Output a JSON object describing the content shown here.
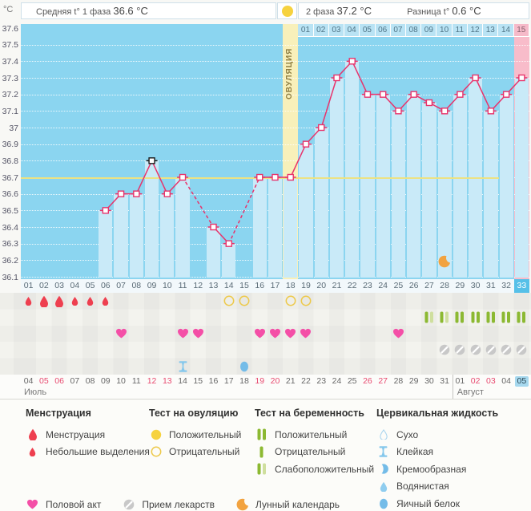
{
  "header": {
    "unit": "°C",
    "phase1_label": "Средняя t° 1 фаза",
    "phase1_value": "36.6 °C",
    "ovulation_label": "ОВУЛЯЦИЯ",
    "phase2_label": "2 фаза",
    "phase2_value": "37.2 °C",
    "diff_label": "Разница t°",
    "diff_value": "0.6 °C"
  },
  "chart_data": {
    "type": "line",
    "ylabel": "°C",
    "ylim": [
      36.1,
      37.6
    ],
    "ytick_labels": [
      "37.6",
      "37.5",
      "37.4",
      "37.3",
      "37.2",
      "37.1",
      "37",
      "36.9",
      "36.8",
      "36.7",
      "36.6",
      "36.5",
      "36.4",
      "36.3",
      "36.2",
      "36.1"
    ],
    "total_days": 33,
    "coverline_temp": 36.7,
    "coverline_span_days": [
      1,
      31
    ],
    "ovulation_day": 18,
    "current_day": 33,
    "moon_day": 28,
    "phase2_dpo_labels": [
      "01",
      "02",
      "03",
      "04",
      "05",
      "06",
      "07",
      "08",
      "09",
      "10",
      "11",
      "12",
      "13",
      "14",
      "15"
    ],
    "points": [
      {
        "day": 6,
        "temp": 36.5
      },
      {
        "day": 7,
        "temp": 36.6
      },
      {
        "day": 8,
        "temp": 36.6
      },
      {
        "day": 9,
        "temp": 36.8,
        "peak": true
      },
      {
        "day": 10,
        "temp": 36.6
      },
      {
        "day": 11,
        "temp": 36.7
      },
      {
        "day": 13,
        "temp": 36.4
      },
      {
        "day": 14,
        "temp": 36.3
      },
      {
        "day": 16,
        "temp": 36.7
      },
      {
        "day": 17,
        "temp": 36.7
      },
      {
        "day": 18,
        "temp": 36.7
      },
      {
        "day": 19,
        "temp": 36.9
      },
      {
        "day": 20,
        "temp": 37.0
      },
      {
        "day": 21,
        "temp": 37.3
      },
      {
        "day": 22,
        "temp": 37.4
      },
      {
        "day": 23,
        "temp": 37.2
      },
      {
        "day": 24,
        "temp": 37.2
      },
      {
        "day": 25,
        "temp": 37.1
      },
      {
        "day": 26,
        "temp": 37.2
      },
      {
        "day": 27,
        "temp": 37.15
      },
      {
        "day": 28,
        "temp": 37.1
      },
      {
        "day": 29,
        "temp": 37.2
      },
      {
        "day": 30,
        "temp": 37.3
      },
      {
        "day": 31,
        "temp": 37.1
      },
      {
        "day": 32,
        "temp": 37.2
      },
      {
        "day": 33,
        "temp": 37.3
      }
    ]
  },
  "day_numbers": [
    "01",
    "02",
    "03",
    "04",
    "05",
    "06",
    "07",
    "08",
    "09",
    "10",
    "11",
    "12",
    "13",
    "14",
    "15",
    "16",
    "17",
    "18",
    "19",
    "20",
    "21",
    "22",
    "23",
    "24",
    "25",
    "26",
    "27",
    "28",
    "29",
    "30",
    "31",
    "32",
    "33"
  ],
  "symbols": {
    "menstruation": [
      {
        "day": 1,
        "size": "small"
      },
      {
        "day": 2,
        "size": "big"
      },
      {
        "day": 3,
        "size": "big"
      },
      {
        "day": 4,
        "size": "small"
      },
      {
        "day": 5,
        "size": "small"
      },
      {
        "day": 6,
        "size": "small"
      }
    ],
    "ovulation_tests": [
      {
        "day": 14,
        "result": "negative"
      },
      {
        "day": 15,
        "result": "negative"
      },
      {
        "day": 18,
        "result": "negative"
      },
      {
        "day": 19,
        "result": "negative"
      }
    ],
    "pregnancy_tests": [
      {
        "day": 27,
        "result": "weak_positive"
      },
      {
        "day": 28,
        "result": "weak_positive"
      },
      {
        "day": 29,
        "result": "positive"
      },
      {
        "day": 30,
        "result": "positive"
      },
      {
        "day": 31,
        "result": "positive"
      },
      {
        "day": 32,
        "result": "positive"
      },
      {
        "day": 33,
        "result": "positive"
      }
    ],
    "intercourse_days": [
      7,
      11,
      12,
      16,
      17,
      18,
      19,
      25
    ],
    "medication_days": [
      28,
      29,
      30,
      31,
      32,
      33
    ],
    "cervical_fluid": [
      {
        "day": 11,
        "type": "Клейкая"
      },
      {
        "day": 15,
        "type": "Яичный белок"
      }
    ]
  },
  "dates": {
    "months": [
      {
        "label": "Июль",
        "start_day": 1,
        "end_day": 28
      },
      {
        "label": "Август",
        "start_day": 29,
        "end_day": 33
      }
    ],
    "items": [
      {
        "label": "04"
      },
      {
        "label": "05",
        "red": true
      },
      {
        "label": "06",
        "red": true
      },
      {
        "label": "07"
      },
      {
        "label": "08"
      },
      {
        "label": "09"
      },
      {
        "label": "10"
      },
      {
        "label": "11"
      },
      {
        "label": "12",
        "red": true
      },
      {
        "label": "13",
        "red": true
      },
      {
        "label": "14"
      },
      {
        "label": "15"
      },
      {
        "label": "16"
      },
      {
        "label": "17"
      },
      {
        "label": "18"
      },
      {
        "label": "19",
        "red": true
      },
      {
        "label": "20",
        "red": true
      },
      {
        "label": "21"
      },
      {
        "label": "22"
      },
      {
        "label": "23"
      },
      {
        "label": "24"
      },
      {
        "label": "25"
      },
      {
        "label": "26",
        "red": true
      },
      {
        "label": "27",
        "red": true
      },
      {
        "label": "28"
      },
      {
        "label": "29"
      },
      {
        "label": "30"
      },
      {
        "label": "31"
      },
      {
        "label": "01"
      },
      {
        "label": "02",
        "red": true
      },
      {
        "label": "03",
        "red": true
      },
      {
        "label": "04"
      },
      {
        "label": "05",
        "today": true
      }
    ]
  },
  "legend": {
    "groups": [
      {
        "title": "Менструация",
        "items": [
          {
            "icon": "drop_big",
            "label": "Менструация"
          },
          {
            "icon": "drop_small",
            "label": "Небольшие выделения"
          }
        ]
      },
      {
        "title": "Тест на овуляцию",
        "items": [
          {
            "icon": "circle_filled",
            "label": "Положительный"
          },
          {
            "icon": "circle_outline",
            "label": "Отрицательный"
          }
        ]
      },
      {
        "title": "Тест на беременность",
        "items": [
          {
            "icon": "bars_positive",
            "label": "Положительный"
          },
          {
            "icon": "bar_negative",
            "label": "Отрицательный"
          },
          {
            "icon": "bars_weak",
            "label": "Слабоположительный"
          }
        ]
      },
      {
        "title": "Цервикальная жидкость",
        "items": [
          {
            "icon": "drop_outline",
            "label": "Сухо"
          },
          {
            "icon": "sticky",
            "label": "Клейкая"
          },
          {
            "icon": "creamy",
            "label": "Кремообразная"
          },
          {
            "icon": "drop_watery",
            "label": "Водянистая"
          },
          {
            "icon": "oval_eggwhite",
            "label": "Яичный белок"
          }
        ]
      }
    ],
    "bottom": [
      {
        "icon": "heart",
        "label": "Половой акт"
      },
      {
        "icon": "pill",
        "label": "Прием лекарств"
      },
      {
        "icon": "moon",
        "label": "Лунный календарь"
      }
    ]
  },
  "colors": {
    "chart_bg": "#8bd5f0",
    "bar": "#c9eaf8",
    "line": "#e8336b",
    "peak_marker": "#1a1a1a",
    "coverline": "#ece283",
    "ovulation_band": "#f8f0ba",
    "highlight_band": "#f8bcca",
    "menstruation": "#ee3f4f",
    "ovulation_test": "#edc94a",
    "pregnancy_positive": "#8cb932",
    "pregnancy_weak": "#cfdf9e",
    "intercourse": "#f44fa7",
    "medication": "#c8c8c8",
    "cervical": "#74bce8",
    "cervical_light": "#86c8ec",
    "moon": "#f2a340",
    "weekend_date": "#e84a70",
    "today_bg": "#a6d8ee",
    "dpo_cell": "#b9e3f4",
    "dpo_cell_last": "#f6bac9"
  }
}
